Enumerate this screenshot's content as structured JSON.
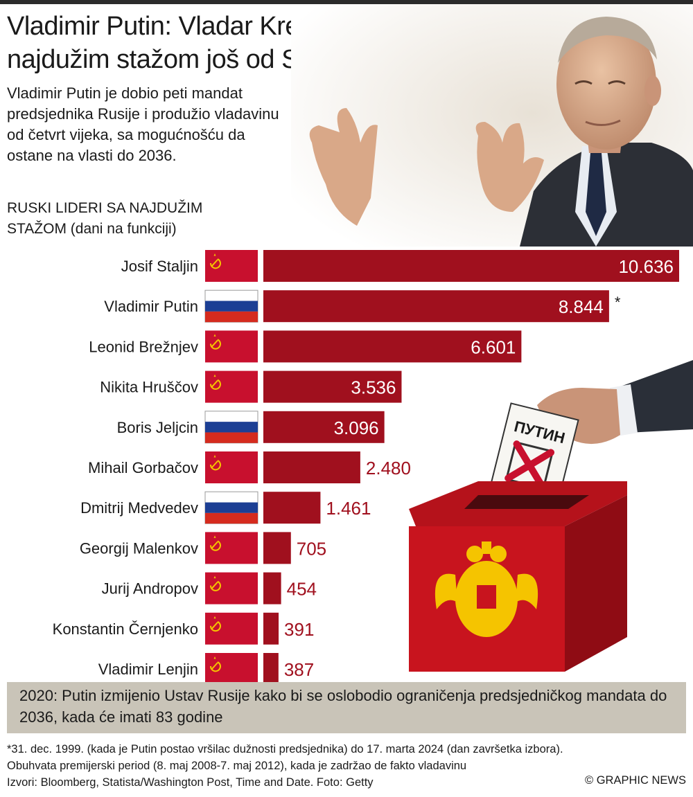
{
  "title": "Vladimir Putin: Vladar Kremlja sa najdužim stažom još od Staljina",
  "subtitle": "Vladimir Putin je dobio peti mandat predsjednika Rusije i produžio vladavinu od četvrt vijeka, sa mogućnošću da ostane na vlasti do 2036.",
  "chart_heading": "RUSKI LIDERI SA NAJDUŽIM STAŽOM (dani na funkciji)",
  "chart_data": {
    "type": "bar",
    "orientation": "horizontal",
    "title": "RUSKI LIDERI SA NAJDUŽIM STAŽOM (dani na funkciji)",
    "categories": [
      "Josif Staljin",
      "Vladimir Putin",
      "Leonid Brežnjev",
      "Nikita Hruščov",
      "Boris Jeljcin",
      "Mihail Gorbačov",
      "Dmitrij Medvedev",
      "Georgij Malenkov",
      "Jurij Andropov",
      "Konstantin Černjenko",
      "Vladimir Lenjin"
    ],
    "values": [
      10636,
      8844,
      6601,
      3536,
      3096,
      2480,
      1461,
      705,
      454,
      391,
      387
    ],
    "value_labels": [
      "10.636",
      "8.844",
      "6.601",
      "3.536",
      "3.096",
      "2.480",
      "1.461",
      "705",
      "454",
      "391",
      "387"
    ],
    "flags": [
      "ussr",
      "russia",
      "ussr",
      "ussr",
      "russia",
      "ussr",
      "russia",
      "ussr",
      "ussr",
      "ussr",
      "ussr"
    ],
    "annotations": {
      "Vladimir Putin": "*"
    },
    "xlim": [
      0,
      10636
    ],
    "grid": false,
    "bar_color": "#a0101e"
  },
  "ballot_text": "ПУТИН",
  "note": "2020: Putin izmijenio Ustav Rusije kako bi  se oslobodio ograničenja predsjedničkog mandata do 2036, kada će imati 83 godine",
  "footnote_1": "*31. dec. 1999. (kada je Putin postao vršilac dužnosti predsjednika) do 17. marta 2024 (dan završetka izbora).",
  "footnote_2": "Obuhvata premijerski period (8. maj 2008-7. maj 2012), kada je zadržao de fakto vladavinu",
  "sources": "Izvori: Bloomberg, Statista/Washington Post, Time and Date. Foto: Getty",
  "credit": "© GRAPHIC NEWS",
  "colors": {
    "bar": "#a0101e",
    "flag_ussr": "#c8102e",
    "emblem": "#f5c400",
    "note_bg": "#c9c4b8"
  }
}
